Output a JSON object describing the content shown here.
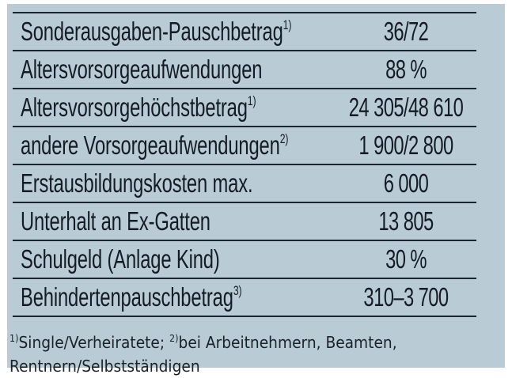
{
  "table": {
    "rows": [
      {
        "label": "Sonderausgaben-Pauschbetrag",
        "footnote": "1)",
        "value": "36/72"
      },
      {
        "label": "Altersvorsorgeaufwendungen",
        "footnote": "",
        "value": "88 %"
      },
      {
        "label": "Altersvorsorgehöchstbetrag",
        "footnote": "1)",
        "value": "24 305/48 610"
      },
      {
        "label": "andere Vorsorgeaufwendungen",
        "footnote": "2)",
        "value": "1 900/2 800"
      },
      {
        "label": "Erstausbildungskosten max.",
        "footnote": "",
        "value": "6 000"
      },
      {
        "label": "Unterhalt an Ex-Gatten",
        "footnote": "",
        "value": "13 805"
      },
      {
        "label": "Schulgeld (Anlage Kind)",
        "footnote": "",
        "value": "30 %"
      },
      {
        "label": "Behindertenpauschbetrag",
        "footnote": "3)",
        "value": "310–3 700"
      }
    ]
  },
  "footnotes": {
    "line1": {
      "n1": "1)",
      "t1": "Single/Verheiratete; ",
      "n2": "2)",
      "t2": "bei Arbeitnehmern, Beamten,"
    },
    "line2": "Rentnern/Selbstständigen"
  },
  "colors": {
    "panel_background": "#b9ccd6",
    "text": "#141b24",
    "rule": "#1b2530"
  }
}
